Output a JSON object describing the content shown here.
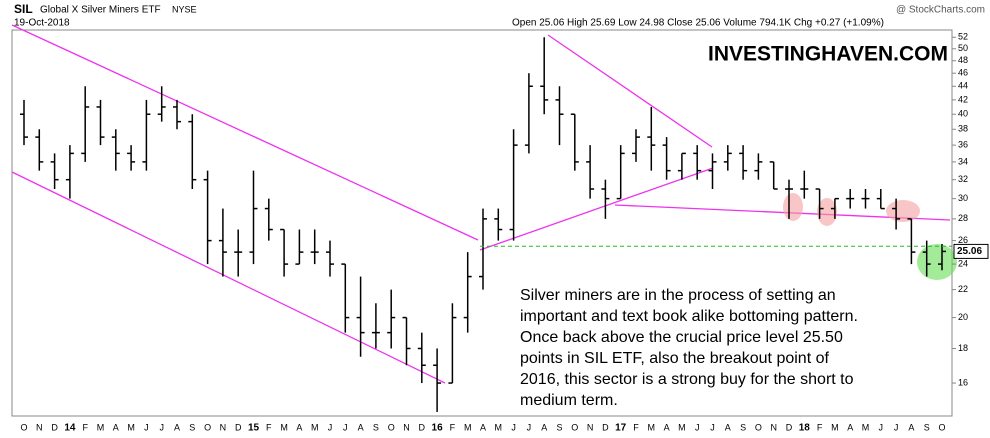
{
  "chart_data": {
    "type": "ohlc",
    "title": "SIL",
    "subtitle": "Global X Silver Miners ETF",
    "exchange": "NYSE",
    "date": "19-Oct-2018",
    "quote": "Open 25.06  High 25.69  Low 24.98  Close 25.06  Volume 794.1K  Chg +0.27 (+1.09%)",
    "credit": "@ StockCharts.com",
    "watermark": "INVESTINGHAVEN.COM",
    "annotation": [
      "Silver miners are in the process of setting an",
      "important and text book alike bottoming pattern.",
      "Once back above the crucial price level 25.50",
      "points in SIL ETF, also the breakout point of",
      "2016, this sector is a strong buy for the short to",
      "medium term."
    ],
    "price_label": "25.06",
    "categories": [
      "O",
      "N",
      "D",
      "14",
      "F",
      "M",
      "A",
      "M",
      "J",
      "J",
      "A",
      "S",
      "O",
      "N",
      "D",
      "15",
      "F",
      "M",
      "A",
      "M",
      "J",
      "J",
      "A",
      "S",
      "O",
      "N",
      "D",
      "16",
      "F",
      "M",
      "A",
      "M",
      "J",
      "J",
      "A",
      "S",
      "O",
      "N",
      "D",
      "17",
      "F",
      "M",
      "A",
      "M",
      "J",
      "J",
      "A",
      "S",
      "O",
      "N",
      "D",
      "18",
      "F",
      "M",
      "A",
      "M",
      "J",
      "J",
      "A",
      "S",
      "O"
    ],
    "open": [
      40,
      37,
      34,
      32,
      35,
      41,
      37,
      35,
      34,
      40,
      41,
      39,
      32,
      26,
      25,
      25,
      29,
      27,
      24,
      25,
      25,
      24,
      20,
      19,
      19,
      20,
      18,
      17,
      16,
      20,
      23,
      28,
      27,
      36,
      44,
      42,
      40,
      34,
      31,
      30,
      35,
      37,
      36,
      33,
      35,
      33,
      34,
      35,
      33,
      34,
      31,
      31,
      31,
      29,
      30,
      30,
      30,
      29,
      28,
      25,
      24
    ],
    "high": [
      42,
      38,
      35,
      36,
      44,
      42,
      38,
      36,
      42,
      44,
      42,
      40,
      33,
      29,
      27,
      33,
      30,
      27,
      27,
      27,
      26,
      24,
      23,
      21,
      22,
      20,
      19,
      18,
      21,
      25,
      29,
      29,
      38,
      46,
      52,
      44,
      40,
      36,
      32,
      36,
      38,
      41,
      37,
      35,
      36,
      35,
      36,
      36,
      35,
      34,
      32,
      33,
      31,
      30,
      31,
      31,
      31,
      30,
      28,
      26,
      25.7
    ],
    "low": [
      36,
      33,
      31,
      30,
      34,
      36,
      33,
      33,
      33,
      39,
      38,
      31,
      24,
      23,
      23,
      24,
      26,
      23,
      24,
      24,
      23,
      19,
      17.5,
      18,
      18,
      17,
      16,
      14.5,
      16,
      19,
      22,
      26,
      26,
      35,
      40,
      36,
      33,
      30,
      28,
      30,
      34,
      33,
      32,
      32,
      32,
      31,
      33,
      32,
      32,
      31,
      28,
      30,
      28,
      28,
      29,
      29,
      29,
      27,
      24,
      23,
      23.5
    ],
    "close": [
      37,
      34,
      32,
      35,
      41,
      37,
      35,
      34,
      40,
      41,
      39,
      32,
      26,
      25,
      25,
      29,
      27,
      24,
      25,
      25,
      24,
      20,
      19,
      19,
      20,
      18,
      17,
      16,
      20,
      23,
      28,
      27,
      36,
      44,
      42,
      40,
      34,
      31,
      30,
      35,
      37,
      36,
      33,
      35,
      33,
      34,
      35,
      33,
      34,
      31,
      31,
      31,
      29,
      30,
      30,
      30,
      29,
      28,
      25,
      24,
      25.06
    ],
    "color": "#000000",
    "log_scale": true,
    "ylim": [
      14.3,
      53.3
    ],
    "yticks": [
      16,
      18,
      20,
      22,
      24,
      26,
      28,
      30,
      32,
      34,
      36,
      38,
      40,
      42,
      44,
      46,
      48,
      50,
      52
    ],
    "hline": 25.5,
    "hline_color": "#22bb22"
  }
}
